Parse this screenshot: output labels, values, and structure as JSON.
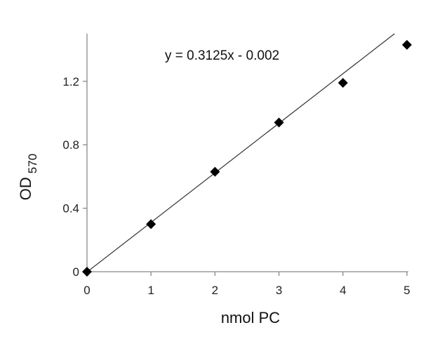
{
  "chart_data": {
    "type": "scatter",
    "title": "",
    "xlabel": "nmol PC",
    "ylabel_main": "OD",
    "ylabel_sub": "570",
    "xlim": [
      0,
      5
    ],
    "ylim": [
      0,
      1.5
    ],
    "x_ticks": [
      0,
      1,
      2,
      3,
      4,
      5
    ],
    "x_tick_labels": [
      "0",
      "1",
      "2",
      "3",
      "4",
      "5"
    ],
    "y_ticks": [
      0,
      0.4,
      0.8,
      1.2
    ],
    "y_tick_labels": [
      "0",
      "0.4",
      "0.8",
      "1.2"
    ],
    "grid": false,
    "marker": "diamond",
    "marker_color": "#000000",
    "series": [
      {
        "x": [
          0,
          1,
          2,
          3,
          4,
          5
        ],
        "y": [
          0.0,
          0.3,
          0.63,
          0.94,
          1.19,
          1.43
        ]
      }
    ],
    "trendline": {
      "slope": 0.3125,
      "intercept": -0.002,
      "label": "y = 0.3125x  - 0.002"
    }
  }
}
